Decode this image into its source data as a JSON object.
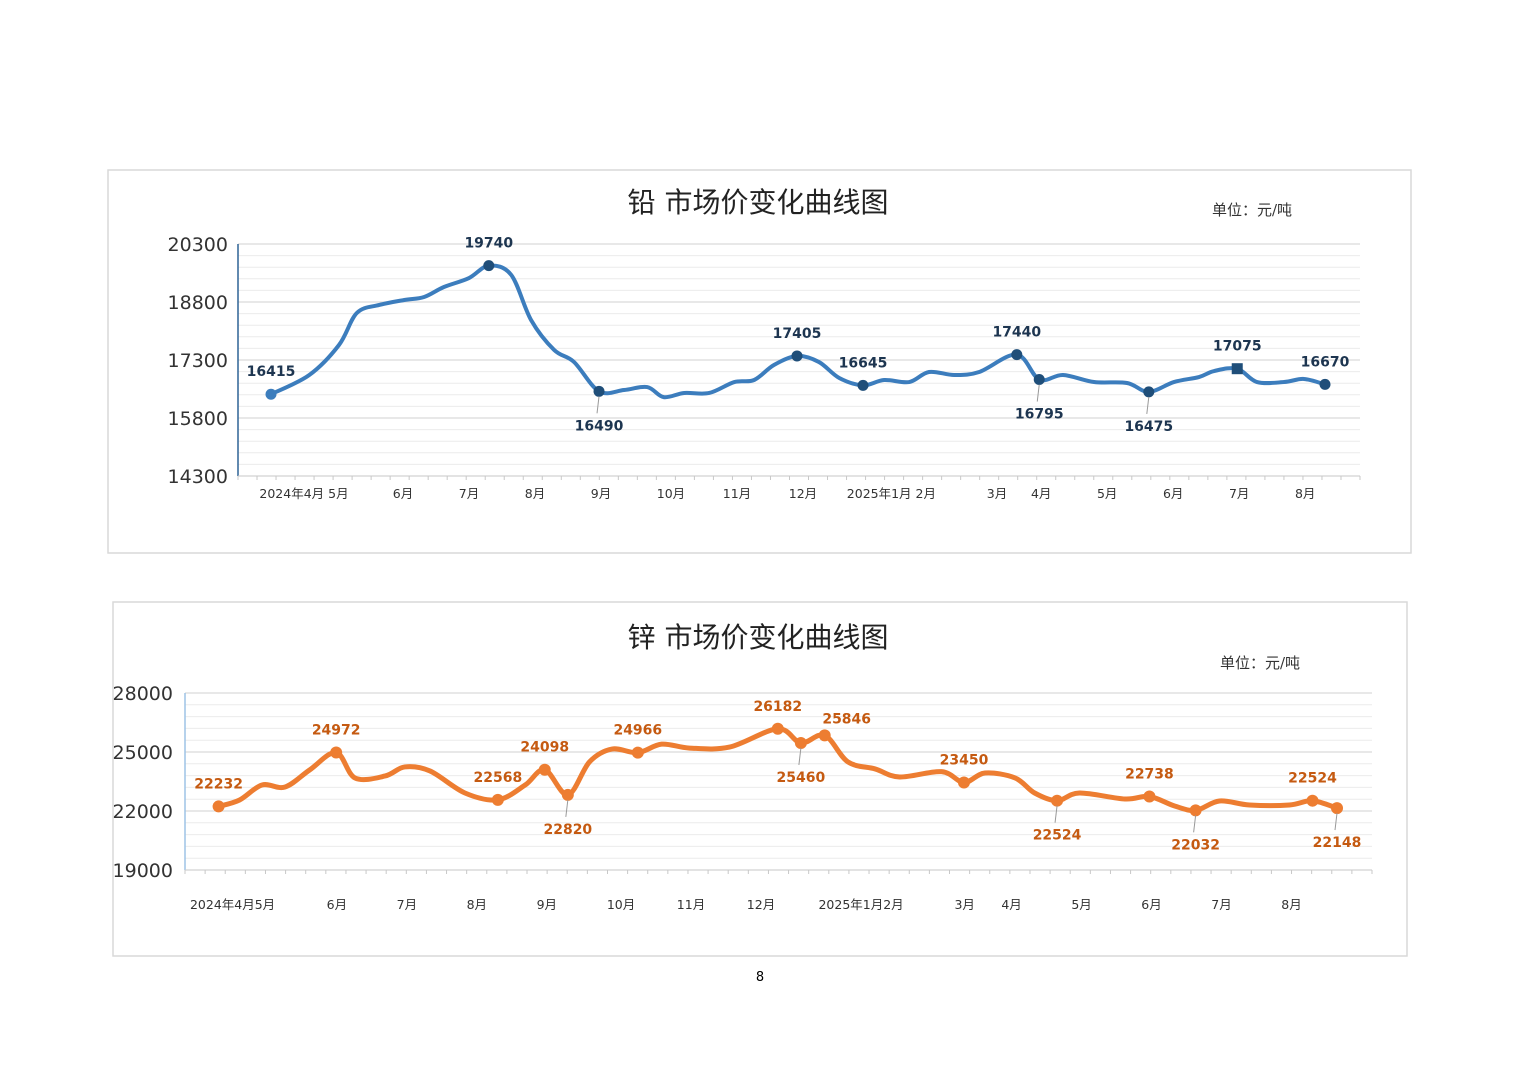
{
  "page_number": "8",
  "colors": {
    "lead_line": "#3c7dbd",
    "lead_marker": "#1f4e79",
    "lead_label": "#1d3550",
    "zinc_line": "#ed7d31",
    "zinc_label": "#c55a11"
  },
  "chart_data": [
    {
      "type": "line",
      "title": "铅 市场价变化曲线图",
      "unit": "单位：元/吨",
      "ylim": [
        14300,
        20300
      ],
      "yticks": [
        "20300",
        "18800",
        "17300",
        "15800",
        "14300"
      ],
      "ytick_values": [
        20300,
        18800,
        17300,
        15800,
        14300
      ],
      "minor_grid_step": 300,
      "x_unit": "months since 2024-04",
      "xlim": [
        -0.5,
        16.5
      ],
      "xticks": [
        {
          "x": 0.5,
          "label": "2024年4月 5月"
        },
        {
          "x": 2,
          "label": "6月"
        },
        {
          "x": 3,
          "label": "7月"
        },
        {
          "x": 4,
          "label": "8月"
        },
        {
          "x": 5,
          "label": "9月"
        },
        {
          "x": 6.06,
          "label": "10月"
        },
        {
          "x": 7.06,
          "label": "11月"
        },
        {
          "x": 8.06,
          "label": "12月"
        },
        {
          "x": 9.4,
          "label": "2025年1月 2月"
        },
        {
          "x": 11,
          "label": "3月"
        },
        {
          "x": 11.67,
          "label": "4月"
        },
        {
          "x": 12.67,
          "label": "5月"
        },
        {
          "x": 13.67,
          "label": "6月"
        },
        {
          "x": 14.67,
          "label": "7月"
        },
        {
          "x": 15.67,
          "label": "8月"
        }
      ],
      "series": [
        {
          "name": "铅",
          "points": [
            [
              0,
              16415
            ],
            [
              0.58,
              16912
            ],
            [
              1.03,
              17688
            ],
            [
              1.3,
              18516
            ],
            [
              1.64,
              18723
            ],
            [
              2.02,
              18852
            ],
            [
              2.32,
              18930
            ],
            [
              2.62,
              19188
            ],
            [
              3.0,
              19420
            ],
            [
              3.3,
              19740
            ],
            [
              3.64,
              19500
            ],
            [
              3.94,
              18335
            ],
            [
              4.29,
              17560
            ],
            [
              4.59,
              17250
            ],
            [
              4.97,
              16490
            ],
            [
              5.35,
              16524
            ],
            [
              5.7,
              16600
            ],
            [
              5.95,
              16340
            ],
            [
              6.26,
              16447
            ],
            [
              6.64,
              16447
            ],
            [
              7.02,
              16730
            ],
            [
              7.32,
              16783
            ],
            [
              7.62,
              17170
            ],
            [
              7.97,
              17405
            ],
            [
              8.3,
              17250
            ],
            [
              8.61,
              16835
            ],
            [
              8.97,
              16645
            ],
            [
              9.29,
              16783
            ],
            [
              9.67,
              16730
            ],
            [
              9.97,
              16990
            ],
            [
              10.35,
              16912
            ],
            [
              10.73,
              16990
            ],
            [
              11.3,
              17440
            ],
            [
              11.64,
              16795
            ],
            [
              12.0,
              16912
            ],
            [
              12.47,
              16730
            ],
            [
              12.97,
              16705
            ],
            [
              13.3,
              16475
            ],
            [
              13.68,
              16730
            ],
            [
              14.06,
              16860
            ],
            [
              14.29,
              17015
            ],
            [
              14.64,
              17075
            ],
            [
              14.94,
              16730
            ],
            [
              15.35,
              16730
            ],
            [
              15.65,
              16810
            ],
            [
              15.97,
              16670
            ]
          ]
        }
      ],
      "annotations": [
        {
          "x": 0,
          "value": 16415,
          "label": "16415",
          "pos": "above",
          "marker": "circle-light"
        },
        {
          "x": 3.3,
          "value": 19740,
          "label": "19740",
          "pos": "above",
          "marker": "circle"
        },
        {
          "x": 4.97,
          "value": 16490,
          "label": "16490",
          "pos": "below",
          "marker": "circle"
        },
        {
          "x": 7.97,
          "value": 17405,
          "label": "17405",
          "pos": "above",
          "marker": "circle"
        },
        {
          "x": 8.97,
          "value": 16645,
          "label": "16645",
          "pos": "above",
          "marker": "circle"
        },
        {
          "x": 11.3,
          "value": 17440,
          "label": "17440",
          "pos": "above",
          "marker": "circle"
        },
        {
          "x": 11.64,
          "value": 16795,
          "label": "16795",
          "pos": "below",
          "marker": "circle"
        },
        {
          "x": 13.3,
          "value": 16475,
          "label": "16475",
          "pos": "below",
          "marker": "circle"
        },
        {
          "x": 14.64,
          "value": 17075,
          "label": "17075",
          "pos": "above",
          "marker": "square"
        },
        {
          "x": 15.97,
          "value": 16670,
          "label": "16670",
          "pos": "above",
          "marker": "circle"
        }
      ]
    },
    {
      "type": "line",
      "title": "锌 市场价变化曲线图",
      "unit": "单位：元/吨",
      "ylim": [
        19000,
        28000
      ],
      "yticks": [
        "28000",
        "25000",
        "22000",
        "19000"
      ],
      "ytick_values": [
        28000,
        25000,
        22000,
        19000
      ],
      "minor_grid_step": 600,
      "x_unit": "months since 2024-04",
      "xlim": [
        -0.17,
        16.79
      ],
      "xticks": [
        {
          "x": 0.51,
          "label": "2024年4月5月"
        },
        {
          "x": 2,
          "label": "6月"
        },
        {
          "x": 3,
          "label": "7月"
        },
        {
          "x": 4,
          "label": "8月"
        },
        {
          "x": 5,
          "label": "9月"
        },
        {
          "x": 6.06,
          "label": "10月"
        },
        {
          "x": 7.06,
          "label": "11月"
        },
        {
          "x": 8.06,
          "label": "12月"
        },
        {
          "x": 9.49,
          "label": "2025年1月2月"
        },
        {
          "x": 10.97,
          "label": "3月"
        },
        {
          "x": 11.64,
          "label": "4月"
        },
        {
          "x": 12.64,
          "label": "5月"
        },
        {
          "x": 13.64,
          "label": "6月"
        },
        {
          "x": 14.64,
          "label": "7月"
        },
        {
          "x": 15.64,
          "label": "8月"
        }
      ],
      "series": [
        {
          "name": "锌",
          "points": [
            [
              0.31,
              22232
            ],
            [
              0.61,
              22560
            ],
            [
              0.93,
              23323
            ],
            [
              1.26,
              23220
            ],
            [
              1.61,
              24085
            ],
            [
              1.99,
              24972
            ],
            [
              2.26,
              23680
            ],
            [
              2.69,
              23780
            ],
            [
              2.97,
              24240
            ],
            [
              3.33,
              24035
            ],
            [
              3.83,
              22915
            ],
            [
              4.3,
              22568
            ],
            [
              4.69,
              23320
            ],
            [
              4.97,
              24098
            ],
            [
              5.3,
              22820
            ],
            [
              5.61,
              24500
            ],
            [
              5.93,
              25150
            ],
            [
              6.3,
              24966
            ],
            [
              6.64,
              25400
            ],
            [
              7.04,
              25200
            ],
            [
              7.61,
              25250
            ],
            [
              8.3,
              26182
            ],
            [
              8.63,
              25460
            ],
            [
              8.97,
              25846
            ],
            [
              9.3,
              24500
            ],
            [
              9.69,
              24140
            ],
            [
              10.04,
              23730
            ],
            [
              10.64,
              24000
            ],
            [
              10.96,
              23450
            ],
            [
              11.26,
              23930
            ],
            [
              11.69,
              23680
            ],
            [
              11.97,
              22915
            ],
            [
              12.29,
              22524
            ],
            [
              12.61,
              22915
            ],
            [
              13.26,
              22610
            ],
            [
              13.61,
              22738
            ],
            [
              13.97,
              22255
            ],
            [
              14.27,
              22032
            ],
            [
              14.61,
              22510
            ],
            [
              15.04,
              22305
            ],
            [
              15.61,
              22305
            ],
            [
              15.94,
              22524
            ],
            [
              16.29,
              22148
            ]
          ]
        }
      ],
      "annotations": [
        {
          "x": 0.31,
          "value": 22232,
          "label": "22232",
          "pos": "above"
        },
        {
          "x": 1.99,
          "value": 24972,
          "label": "24972",
          "pos": "above"
        },
        {
          "x": 4.3,
          "value": 22568,
          "label": "22568",
          "pos": "above"
        },
        {
          "x": 4.97,
          "value": 24098,
          "label": "24098",
          "pos": "above"
        },
        {
          "x": 5.3,
          "value": 22820,
          "label": "22820",
          "pos": "below"
        },
        {
          "x": 6.3,
          "value": 24966,
          "label": "24966",
          "pos": "above"
        },
        {
          "x": 8.3,
          "value": 26182,
          "label": "26182",
          "pos": "above"
        },
        {
          "x": 8.63,
          "value": 25460,
          "label": "25460",
          "pos": "below"
        },
        {
          "x": 8.97,
          "value": 25846,
          "label": "25846",
          "pos": "above-right"
        },
        {
          "x": 10.96,
          "value": 23450,
          "label": "23450",
          "pos": "above"
        },
        {
          "x": 12.29,
          "value": 22524,
          "label": "22524",
          "pos": "below"
        },
        {
          "x": 13.61,
          "value": 22738,
          "label": "22738",
          "pos": "above"
        },
        {
          "x": 14.27,
          "value": 22032,
          "label": "22032",
          "pos": "below"
        },
        {
          "x": 15.94,
          "value": 22524,
          "label": "22524",
          "pos": "above"
        },
        {
          "x": 16.29,
          "value": 22148,
          "label": "22148",
          "pos": "below"
        }
      ]
    }
  ]
}
